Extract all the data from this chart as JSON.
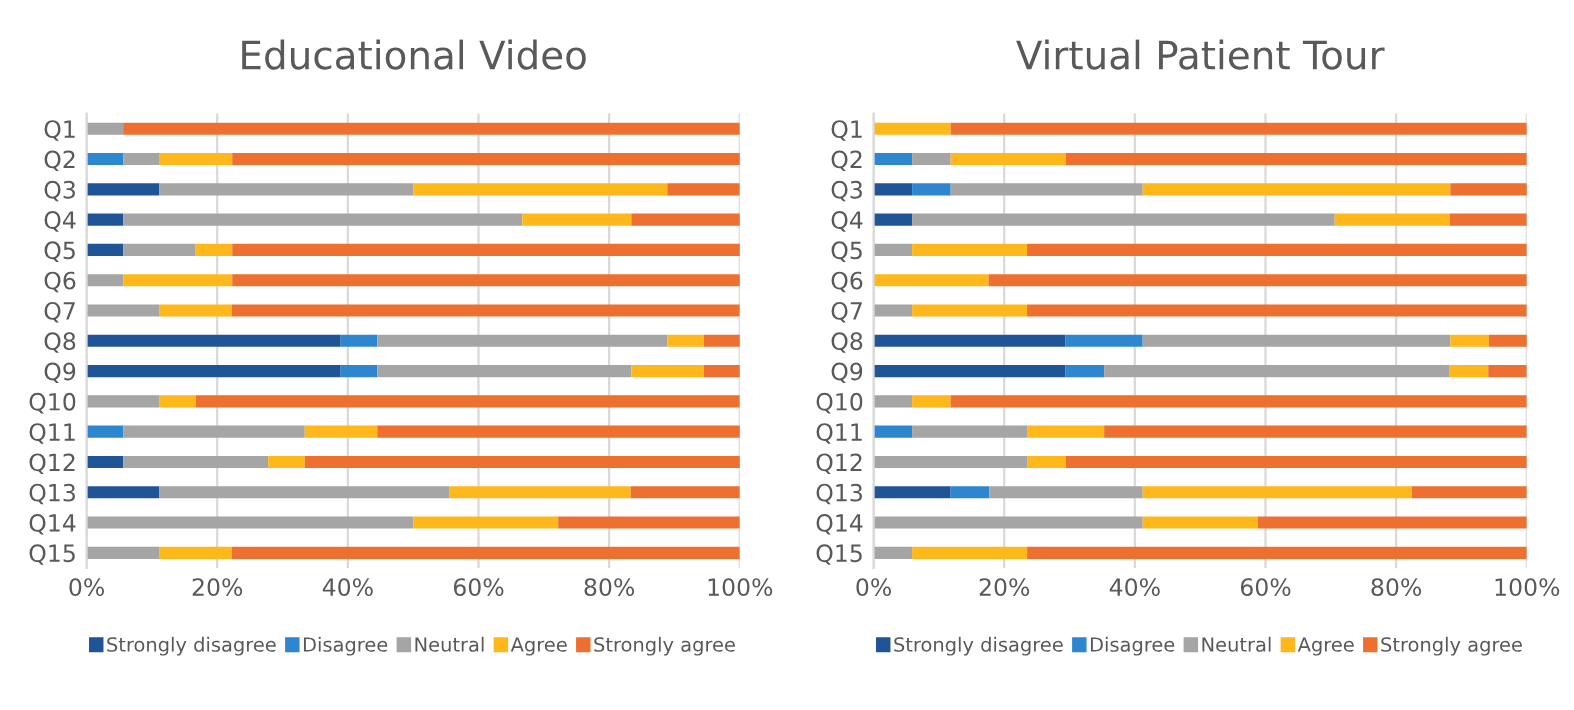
{
  "chart_data": [
    {
      "type": "bar",
      "title": "Educational Video",
      "orientation": "horizontal",
      "stacked": true,
      "grid": "x",
      "legend": "bottom",
      "categories": [
        "Q1",
        "Q2",
        "Q3",
        "Q4",
        "Q5",
        "Q6",
        "Q7",
        "Q8",
        "Q9",
        "Q10",
        "Q11",
        "Q12",
        "Q13",
        "Q14",
        "Q15"
      ],
      "xlim": [
        0,
        100
      ],
      "xticks": [
        {
          "value": 0,
          "label": "0%"
        },
        {
          "value": 20,
          "label": "20%"
        },
        {
          "value": 40,
          "label": "40%"
        },
        {
          "value": 60,
          "label": "60%"
        },
        {
          "value": 80,
          "label": "80%"
        },
        {
          "value": 100,
          "label": "100%"
        }
      ],
      "series": [
        {
          "name": "Strongly disagree",
          "color": "#1f5597",
          "values": [
            0,
            0,
            11.1,
            5.6,
            5.6,
            0,
            0,
            38.9,
            38.9,
            0,
            0,
            5.6,
            11.1,
            0,
            0
          ]
        },
        {
          "name": "Disagree",
          "color": "#2e86d0",
          "values": [
            0,
            5.6,
            0,
            0,
            0,
            0,
            0,
            5.6,
            5.6,
            0,
            5.6,
            0,
            0,
            0,
            0
          ]
        },
        {
          "name": "Neutral",
          "color": "#a5a5a5",
          "values": [
            5.6,
            5.6,
            38.9,
            61.1,
            11.1,
            5.6,
            11.1,
            44.4,
            38.9,
            11.1,
            27.8,
            22.2,
            44.4,
            50,
            11.1
          ]
        },
        {
          "name": "Agree",
          "color": "#ffb81c",
          "values": [
            0,
            11.1,
            38.9,
            16.7,
            5.6,
            16.7,
            11.1,
            5.6,
            11.1,
            5.6,
            11.1,
            5.6,
            27.8,
            22.2,
            11.1
          ]
        },
        {
          "name": "Strongly agree",
          "color": "#ed7031",
          "values": [
            94.4,
            77.8,
            11.1,
            16.7,
            77.8,
            77.8,
            77.8,
            5.6,
            5.6,
            83.3,
            55.6,
            66.7,
            16.7,
            27.8,
            77.8
          ]
        }
      ]
    },
    {
      "type": "bar",
      "title": "Virtual Patient Tour",
      "orientation": "horizontal",
      "stacked": true,
      "grid": "x",
      "legend": "bottom",
      "categories": [
        "Q1",
        "Q2",
        "Q3",
        "Q4",
        "Q5",
        "Q6",
        "Q7",
        "Q8",
        "Q9",
        "Q10",
        "Q11",
        "Q12",
        "Q13",
        "Q14",
        "Q15"
      ],
      "xlim": [
        0,
        100
      ],
      "xticks": [
        {
          "value": 0,
          "label": "0%"
        },
        {
          "value": 20,
          "label": "20%"
        },
        {
          "value": 40,
          "label": "40%"
        },
        {
          "value": 60,
          "label": "60%"
        },
        {
          "value": 80,
          "label": "80%"
        },
        {
          "value": 100,
          "label": "100%"
        }
      ],
      "series": [
        {
          "name": "Strongly disagree",
          "color": "#1f5597",
          "values": [
            0,
            0,
            5.9,
            5.9,
            0,
            0,
            0,
            29.4,
            29.4,
            0,
            0,
            0,
            11.8,
            0,
            0
          ]
        },
        {
          "name": "Disagree",
          "color": "#2e86d0",
          "values": [
            0,
            5.9,
            5.9,
            0,
            0,
            0,
            0,
            11.8,
            5.9,
            0,
            5.9,
            0,
            5.9,
            0,
            0
          ]
        },
        {
          "name": "Neutral",
          "color": "#a5a5a5",
          "values": [
            0,
            5.9,
            29.4,
            64.7,
            5.9,
            0,
            5.9,
            47.1,
            52.9,
            5.9,
            17.6,
            23.5,
            23.5,
            41.2,
            5.9
          ]
        },
        {
          "name": "Agree",
          "color": "#ffb81c",
          "values": [
            11.8,
            17.6,
            47.1,
            17.6,
            17.6,
            17.6,
            17.6,
            5.9,
            5.9,
            5.9,
            11.8,
            5.9,
            41.2,
            17.6,
            17.6
          ]
        },
        {
          "name": "Strongly agree",
          "color": "#ed7031",
          "values": [
            88.2,
            70.6,
            11.8,
            11.8,
            76.5,
            82.4,
            76.5,
            5.9,
            5.9,
            88.2,
            64.7,
            70.6,
            17.6,
            41.2,
            76.5
          ]
        }
      ]
    }
  ]
}
